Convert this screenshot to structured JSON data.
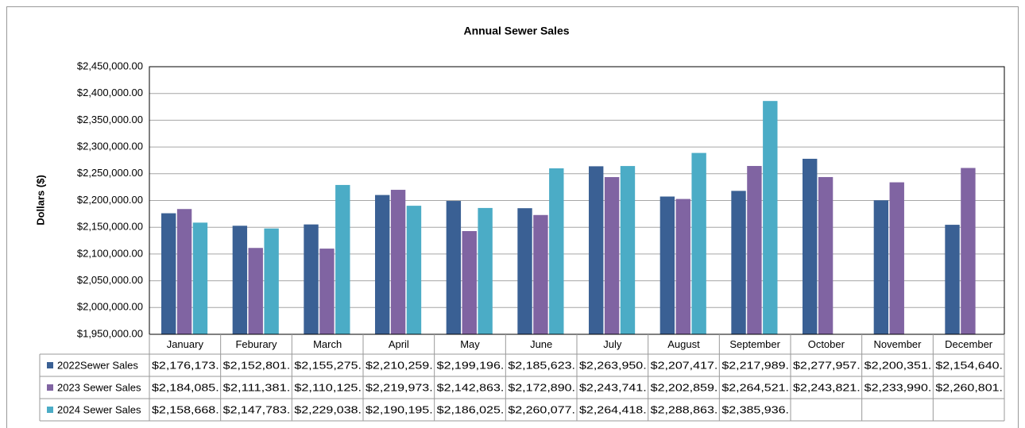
{
  "chart_data": {
    "type": "bar",
    "title": "Annual Sewer Sales",
    "ylabel": "Dollars ($)",
    "categories": [
      "January",
      "Feburary",
      "March",
      "April",
      "May",
      "June",
      "July",
      "August",
      "September",
      "October",
      "November",
      "December"
    ],
    "series": [
      {
        "name": "2022Sewer Sales",
        "color": "#3a6094",
        "values": [
          2176173,
          2152801,
          2155275,
          2210259,
          2199196,
          2185623,
          2263950,
          2207417,
          2217989,
          2277957,
          2200351,
          2154640
        ],
        "value_labels": [
          "$2,176,173.",
          "$2,152,801.",
          "$2,155,275.",
          "$2,210,259.",
          "$2,199,196.",
          "$2,185,623.",
          "$2,263,950.",
          "$2,207,417.",
          "$2,217,989.",
          "$2,277,957.",
          "$2,200,351.",
          "$2,154,640."
        ]
      },
      {
        "name": "2023 Sewer Sales",
        "color": "#8064a2",
        "values": [
          2184085,
          2111381,
          2110125,
          2219973,
          2142863,
          2172890,
          2243741,
          2202859,
          2264521,
          2243821,
          2233990,
          2260801
        ],
        "value_labels": [
          "$2,184,085.",
          "$2,111,381.",
          "$2,110,125.",
          "$2,219,973.",
          "$2,142,863.",
          "$2,172,890.",
          "$2,243,741.",
          "$2,202,859.",
          "$2,264,521.",
          "$2,243,821.",
          "$2,233,990.",
          "$2,260,801."
        ]
      },
      {
        "name": "2024 Sewer Sales",
        "color": "#4bacc6",
        "values": [
          2158668,
          2147783,
          2229038,
          2190195,
          2186025,
          2260077,
          2264418,
          2288863,
          2385936,
          null,
          null,
          null
        ],
        "value_labels": [
          "$2,158,668.",
          "$2,147,783.",
          "$2,229,038.",
          "$2,190,195.",
          "$2,186,025.",
          "$2,260,077.",
          "$2,264,418.",
          "$2,288,863.",
          "$2,385,936.",
          null,
          null,
          null
        ]
      }
    ],
    "ylim": [
      1950000,
      2450000
    ],
    "yticks": [
      {
        "value": 1950000,
        "label": "$1,950,000.00"
      },
      {
        "value": 2000000,
        "label": "$2,000,000.00"
      },
      {
        "value": 2050000,
        "label": "$2,050,000.00"
      },
      {
        "value": 2100000,
        "label": "$2,100,000.00"
      },
      {
        "value": 2150000,
        "label": "$2,150,000.00"
      },
      {
        "value": 2200000,
        "label": "$2,200,000.00"
      },
      {
        "value": 2250000,
        "label": "$2,250,000.00"
      },
      {
        "value": 2300000,
        "label": "$2,300,000.00"
      },
      {
        "value": 2350000,
        "label": "$2,350,000.00"
      },
      {
        "value": 2400000,
        "label": "$2,400,000.00"
      },
      {
        "value": 2450000,
        "label": "$2,450,000.00"
      }
    ],
    "grid": true
  }
}
